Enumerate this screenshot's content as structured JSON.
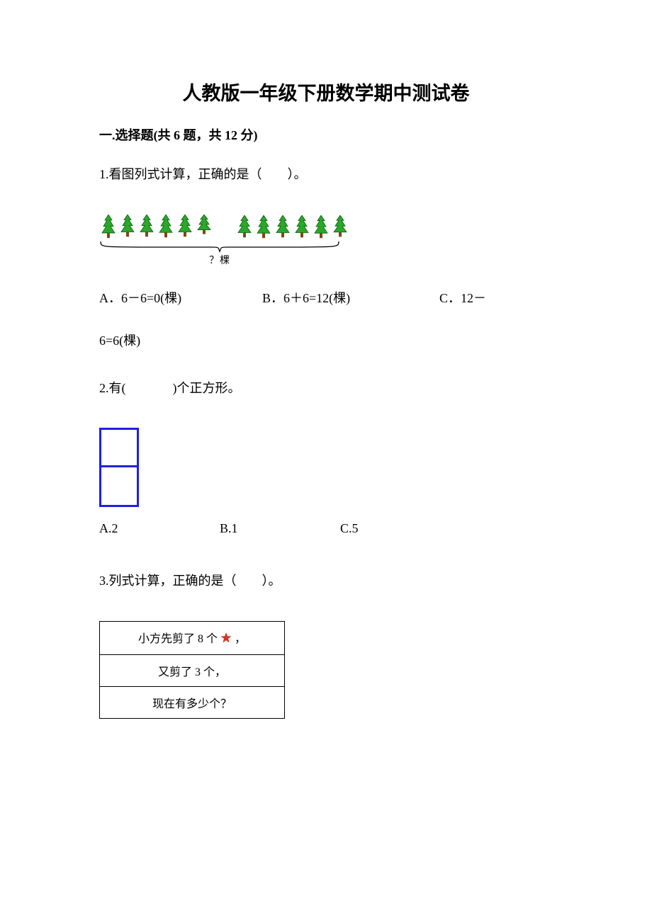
{
  "title": "人教版一年级下册数学期中测试卷",
  "section1": {
    "header": "一.选择题(共 6 题，共 12 分)"
  },
  "q1": {
    "text": "1.看图列式计算，正确的是（　　）。",
    "trees": {
      "group1_count": 6,
      "group2_count": 6,
      "tree_fill": "#2aa82a",
      "tree_stroke": "#0a5c0a",
      "trunk_color": "#7a4a1a",
      "bracket_color": "#000000",
      "label": "？棵"
    },
    "options": {
      "a": "A．6－6=0(棵)",
      "b": "B．6＋6=12(棵)",
      "c_line1": "C．12－",
      "c_line2": "6=6(棵)"
    }
  },
  "q2": {
    "text_pre": "2.有(",
    "text_post": ")个正方形。",
    "square_border": "#2020e0",
    "options": {
      "a": "A.2",
      "b": "B.1",
      "c": "C.5"
    }
  },
  "q3": {
    "text": "3.列式计算，正确的是（　　）。",
    "row1_pre": "小方先剪了 8 个",
    "row1_post": "，",
    "row2": "又剪了 3 个，",
    "row3": "现在有多少个？",
    "star_color": "#e03020",
    "border_color": "#000000"
  }
}
